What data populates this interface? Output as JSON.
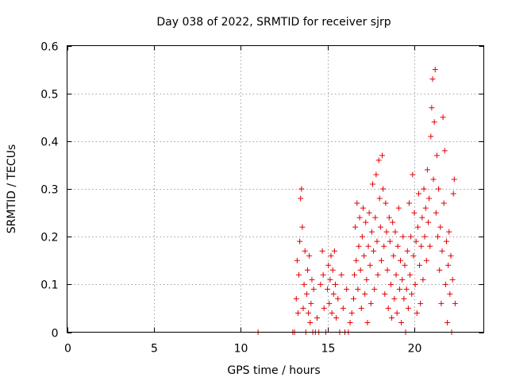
{
  "chart_data": {
    "type": "scatter",
    "title": "Day 038 of 2022, SRMTID for receiver sjrp",
    "xlabel": "GPS time / hours",
    "ylabel": "SRMTID / TECUs",
    "xlim": [
      0,
      24
    ],
    "ylim": [
      0,
      0.6
    ],
    "xticks": [
      0,
      5,
      10,
      15,
      20
    ],
    "xtick_labels": [
      "0",
      "5",
      "10",
      "15",
      "20"
    ],
    "yticks": [
      0,
      0.1,
      0.2,
      0.3,
      0.4,
      0.5,
      0.6
    ],
    "ytick_labels": [
      "0",
      "0.1",
      "0.2",
      "0.3",
      "0.4",
      "0.5",
      "0.6"
    ],
    "grid": true,
    "marker": "+",
    "color": "#e00000",
    "series": [
      {
        "name": "SRMTID",
        "points": [
          [
            11.0,
            0.0
          ],
          [
            13.0,
            0.0
          ],
          [
            13.1,
            0.0
          ],
          [
            13.2,
            0.07
          ],
          [
            13.25,
            0.15
          ],
          [
            13.3,
            0.04
          ],
          [
            13.35,
            0.12
          ],
          [
            13.4,
            0.19
          ],
          [
            13.45,
            0.28
          ],
          [
            13.5,
            0.3
          ],
          [
            13.55,
            0.22
          ],
          [
            13.6,
            0.05
          ],
          [
            13.65,
            0.1
          ],
          [
            13.7,
            0.17
          ],
          [
            13.75,
            0.0
          ],
          [
            13.8,
            0.08
          ],
          [
            13.85,
            0.13
          ],
          [
            13.9,
            0.04
          ],
          [
            13.95,
            0.16
          ],
          [
            14.0,
            0.02
          ],
          [
            14.05,
            0.06
          ],
          [
            14.1,
            0.11
          ],
          [
            14.15,
            0.0
          ],
          [
            14.2,
            0.09
          ],
          [
            14.3,
            0.0
          ],
          [
            14.4,
            0.03
          ],
          [
            14.5,
            0.0
          ],
          [
            14.6,
            0.1
          ],
          [
            14.7,
            0.17
          ],
          [
            14.75,
            0.12
          ],
          [
            14.8,
            0.05
          ],
          [
            14.9,
            0.0
          ],
          [
            15.0,
            0.09
          ],
          [
            15.05,
            0.14
          ],
          [
            15.1,
            0.06
          ],
          [
            15.15,
            0.11
          ],
          [
            15.2,
            0.16
          ],
          [
            15.25,
            0.04
          ],
          [
            15.3,
            0.13
          ],
          [
            15.35,
            0.08
          ],
          [
            15.4,
            0.17
          ],
          [
            15.45,
            0.1
          ],
          [
            15.5,
            0.03
          ],
          [
            15.6,
            0.07
          ],
          [
            15.7,
            0.0
          ],
          [
            15.8,
            0.12
          ],
          [
            15.9,
            0.05
          ],
          [
            16.0,
            0.0
          ],
          [
            16.1,
            0.09
          ],
          [
            16.2,
            0.0
          ],
          [
            16.3,
            0.02
          ],
          [
            16.4,
            0.04
          ],
          [
            16.5,
            0.07
          ],
          [
            16.55,
            0.12
          ],
          [
            16.6,
            0.22
          ],
          [
            16.65,
            0.15
          ],
          [
            16.7,
            0.27
          ],
          [
            16.75,
            0.09
          ],
          [
            16.8,
            0.18
          ],
          [
            16.85,
            0.24
          ],
          [
            16.9,
            0.13
          ],
          [
            16.95,
            0.05
          ],
          [
            17.0,
            0.2
          ],
          [
            17.05,
            0.26
          ],
          [
            17.1,
            0.16
          ],
          [
            17.15,
            0.08
          ],
          [
            17.2,
            0.23
          ],
          [
            17.25,
            0.11
          ],
          [
            17.3,
            0.02
          ],
          [
            17.35,
            0.18
          ],
          [
            17.4,
            0.25
          ],
          [
            17.45,
            0.14
          ],
          [
            17.5,
            0.06
          ],
          [
            17.55,
            0.21
          ],
          [
            17.6,
            0.31
          ],
          [
            17.65,
            0.17
          ],
          [
            17.7,
            0.09
          ],
          [
            17.75,
            0.24
          ],
          [
            17.8,
            0.33
          ],
          [
            17.85,
            0.19
          ],
          [
            17.9,
            0.12
          ],
          [
            17.95,
            0.36
          ],
          [
            18.0,
            0.28
          ],
          [
            18.05,
            0.22
          ],
          [
            18.1,
            0.15
          ],
          [
            18.15,
            0.37
          ],
          [
            18.2,
            0.3
          ],
          [
            18.25,
            0.18
          ],
          [
            18.3,
            0.08
          ],
          [
            18.35,
            0.27
          ],
          [
            18.4,
            0.21
          ],
          [
            18.45,
            0.13
          ],
          [
            18.5,
            0.05
          ],
          [
            18.55,
            0.24
          ],
          [
            18.6,
            0.19
          ],
          [
            18.65,
            0.1
          ],
          [
            18.7,
            0.03
          ],
          [
            18.75,
            0.23
          ],
          [
            18.8,
            0.16
          ],
          [
            18.85,
            0.07
          ],
          [
            18.9,
            0.21
          ],
          [
            18.95,
            0.12
          ],
          [
            19.0,
            0.04
          ],
          [
            19.05,
            0.18
          ],
          [
            19.1,
            0.26
          ],
          [
            19.15,
            0.09
          ],
          [
            19.2,
            0.15
          ],
          [
            19.25,
            0.02
          ],
          [
            19.3,
            0.11
          ],
          [
            19.35,
            0.2
          ],
          [
            19.4,
            0.07
          ],
          [
            19.45,
            0.14
          ],
          [
            19.5,
            0.0
          ],
          [
            19.55,
            0.09
          ],
          [
            19.6,
            0.17
          ],
          [
            19.65,
            0.05
          ],
          [
            19.7,
            0.27
          ],
          [
            19.75,
            0.12
          ],
          [
            19.8,
            0.2
          ],
          [
            19.85,
            0.08
          ],
          [
            19.9,
            0.33
          ],
          [
            19.95,
            0.16
          ],
          [
            20.0,
            0.25
          ],
          [
            20.05,
            0.1
          ],
          [
            20.1,
            0.19
          ],
          [
            20.15,
            0.04
          ],
          [
            20.2,
            0.22
          ],
          [
            20.25,
            0.29
          ],
          [
            20.3,
            0.14
          ],
          [
            20.35,
            0.06
          ],
          [
            20.4,
            0.18
          ],
          [
            20.45,
            0.24
          ],
          [
            20.5,
            0.11
          ],
          [
            20.55,
            0.3
          ],
          [
            20.6,
            0.2
          ],
          [
            20.65,
            0.26
          ],
          [
            20.7,
            0.15
          ],
          [
            20.75,
            0.34
          ],
          [
            20.8,
            0.23
          ],
          [
            20.85,
            0.28
          ],
          [
            20.9,
            0.18
          ],
          [
            20.95,
            0.41
          ],
          [
            21.0,
            0.47
          ],
          [
            21.05,
            0.53
          ],
          [
            21.1,
            0.32
          ],
          [
            21.15,
            0.44
          ],
          [
            21.2,
            0.55
          ],
          [
            21.25,
            0.25
          ],
          [
            21.3,
            0.37
          ],
          [
            21.35,
            0.2
          ],
          [
            21.4,
            0.3
          ],
          [
            21.45,
            0.13
          ],
          [
            21.5,
            0.22
          ],
          [
            21.55,
            0.06
          ],
          [
            21.6,
            0.17
          ],
          [
            21.65,
            0.45
          ],
          [
            21.7,
            0.27
          ],
          [
            21.75,
            0.38
          ],
          [
            21.8,
            0.1
          ],
          [
            21.85,
            0.19
          ],
          [
            21.9,
            0.02
          ],
          [
            21.95,
            0.14
          ],
          [
            22.0,
            0.21
          ],
          [
            22.05,
            0.08
          ],
          [
            22.1,
            0.16
          ],
          [
            22.15,
            0.0
          ],
          [
            22.2,
            0.11
          ],
          [
            22.25,
            0.29
          ],
          [
            22.3,
            0.32
          ],
          [
            22.35,
            0.06
          ]
        ]
      }
    ]
  }
}
